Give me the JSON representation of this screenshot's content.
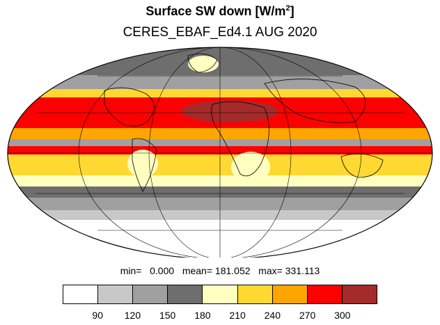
{
  "header": {
    "title_main": "Surface SW down [W/m",
    "title_sup": "2",
    "title_end": "]",
    "subtitle": "CERES_EBAF_Ed4.1 AUG 2020"
  },
  "stats": {
    "text": "min=   0.000   mean= 181.052   max= 331.113"
  },
  "colorbar": {
    "ticks": [
      "90",
      "120",
      "150",
      "180",
      "210",
      "240",
      "270",
      "300"
    ],
    "colors": [
      "#ffffff",
      "#c8c8c8",
      "#a0a0a0",
      "#6e6e6e",
      "#ffffc0",
      "#ffd932",
      "#ffa500",
      "#ff0000",
      "#a52a2a"
    ]
  },
  "map": {
    "projection": "mollweide",
    "graticule": true,
    "coastlines": true
  }
}
